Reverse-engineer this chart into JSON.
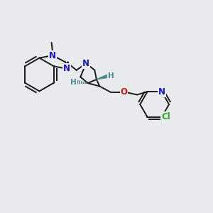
{
  "bg_color": "#e8eaed",
  "bond_color": "#1a1a1a",
  "N_color": "#1515cc",
  "O_color": "#cc1515",
  "Cl_color": "#22aa22",
  "H_color": "#4a8a8a",
  "lw": 1.4,
  "figsize": [
    3.0,
    3.0
  ],
  "dpi": 100,
  "xlim": [
    0,
    10
  ],
  "ylim": [
    0,
    10
  ]
}
